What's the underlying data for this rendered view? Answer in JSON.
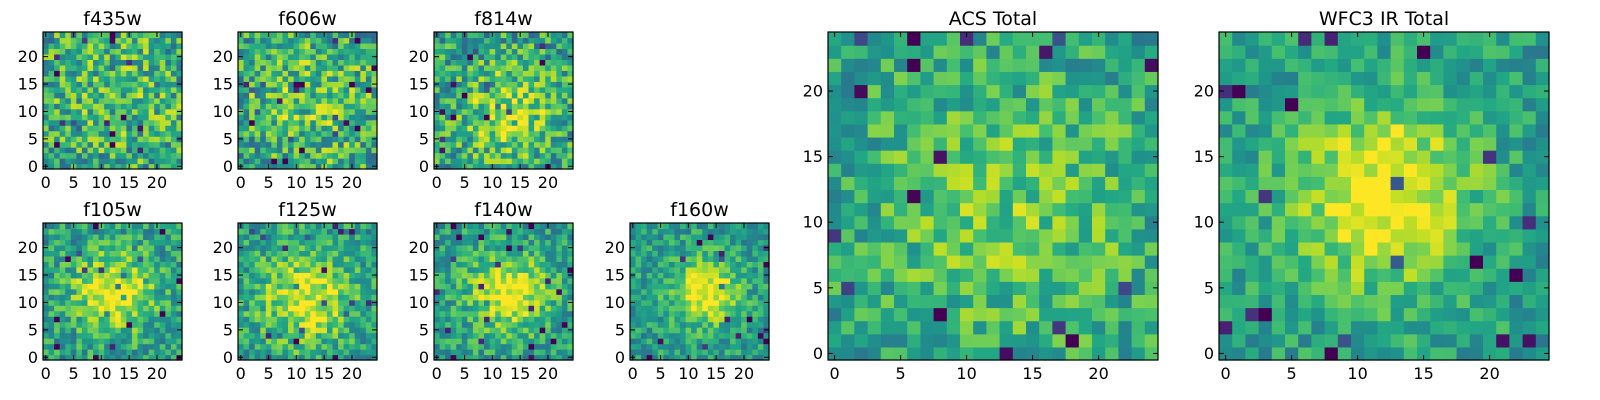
{
  "figure_title": "",
  "chart_data": [
    {
      "type": "heatmap",
      "title": "f435w",
      "xlim": [
        0,
        24
      ],
      "ylim": [
        0,
        24
      ],
      "grid": 25,
      "xticks": [
        0,
        5,
        10,
        15,
        20
      ],
      "yticks": [
        0,
        5,
        10,
        15,
        20
      ],
      "colormap": "viridis",
      "center": [
        13,
        14
      ],
      "sigma": 12,
      "peak_gain": 0.15,
      "noise": 0.32,
      "seed": 11
    },
    {
      "type": "heatmap",
      "title": "f606w",
      "xlim": [
        0,
        24
      ],
      "ylim": [
        0,
        24
      ],
      "grid": 25,
      "xticks": [
        0,
        5,
        10,
        15,
        20
      ],
      "yticks": [
        0,
        5,
        10,
        15,
        20
      ],
      "colormap": "viridis",
      "center": [
        12,
        12
      ],
      "sigma": 10,
      "peak_gain": 0.2,
      "noise": 0.32,
      "seed": 23
    },
    {
      "type": "heatmap",
      "title": "f814w",
      "xlim": [
        0,
        24
      ],
      "ylim": [
        0,
        24
      ],
      "grid": 25,
      "xticks": [
        0,
        5,
        10,
        15,
        20
      ],
      "yticks": [
        0,
        5,
        10,
        15,
        20
      ],
      "colormap": "viridis",
      "center": [
        13,
        10
      ],
      "sigma": 7,
      "peak_gain": 0.3,
      "noise": 0.3,
      "seed": 37
    },
    {
      "type": "heatmap",
      "title": "f105w",
      "xlim": [
        0,
        24
      ],
      "ylim": [
        0,
        24
      ],
      "grid": 25,
      "xticks": [
        0,
        5,
        10,
        15,
        20
      ],
      "yticks": [
        0,
        5,
        10,
        15,
        20
      ],
      "colormap": "viridis",
      "center": [
        12,
        12
      ],
      "sigma": 5,
      "peak_gain": 0.5,
      "noise": 0.24,
      "seed": 41
    },
    {
      "type": "heatmap",
      "title": "f125w",
      "xlim": [
        0,
        24
      ],
      "ylim": [
        0,
        24
      ],
      "grid": 25,
      "xticks": [
        0,
        5,
        10,
        15,
        20
      ],
      "yticks": [
        0,
        5,
        10,
        15,
        20
      ],
      "colormap": "viridis",
      "center": [
        12,
        11
      ],
      "sigma": 6,
      "peak_gain": 0.45,
      "noise": 0.24,
      "seed": 53
    },
    {
      "type": "heatmap",
      "title": "f140w",
      "xlim": [
        0,
        24
      ],
      "ylim": [
        0,
        24
      ],
      "grid": 25,
      "xticks": [
        0,
        5,
        10,
        15,
        20
      ],
      "yticks": [
        0,
        5,
        10,
        15,
        20
      ],
      "colormap": "viridis",
      "center": [
        13,
        12
      ],
      "sigma": 5,
      "peak_gain": 0.5,
      "noise": 0.22,
      "seed": 67
    },
    {
      "type": "heatmap",
      "title": "f160w",
      "xlim": [
        0,
        24
      ],
      "ylim": [
        0,
        24
      ],
      "grid": 25,
      "xticks": [
        0,
        5,
        10,
        15,
        20
      ],
      "yticks": [
        0,
        5,
        10,
        15,
        20
      ],
      "colormap": "viridis",
      "center": [
        13,
        12
      ],
      "sigma": 4,
      "peak_gain": 0.55,
      "noise": 0.2,
      "seed": 79
    },
    {
      "type": "heatmap",
      "title": "ACS Total",
      "xlim": [
        0,
        24
      ],
      "ylim": [
        0,
        24
      ],
      "grid": 25,
      "xticks": [
        0,
        5,
        10,
        15,
        20
      ],
      "yticks": [
        0,
        5,
        10,
        15,
        20
      ],
      "colormap": "viridis",
      "center": [
        13,
        11
      ],
      "sigma": 8,
      "peak_gain": 0.25,
      "noise": 0.22,
      "seed": 97
    },
    {
      "type": "heatmap",
      "title": "WFC3 IR Total",
      "xlim": [
        0,
        24
      ],
      "ylim": [
        0,
        24
      ],
      "grid": 25,
      "xticks": [
        0,
        5,
        10,
        15,
        20
      ],
      "yticks": [
        0,
        5,
        10,
        15,
        20
      ],
      "colormap": "viridis",
      "center": [
        12,
        12
      ],
      "sigma": 5,
      "peak_gain": 0.55,
      "noise": 0.18,
      "seed": 113
    }
  ]
}
